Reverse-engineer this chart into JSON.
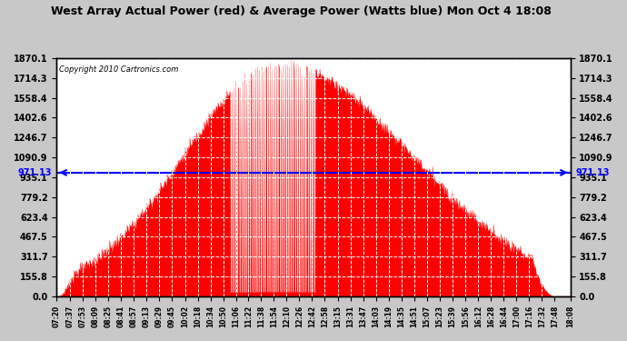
{
  "title": "West Array Actual Power (red) & Average Power (Watts blue) Mon Oct 4 18:08",
  "copyright": "Copyright 2010 Cartronics.com",
  "average_power": 971.13,
  "y_max": 1870.1,
  "y_min": 0.0,
  "ytick_values": [
    0.0,
    155.8,
    311.7,
    467.5,
    623.4,
    779.2,
    935.1,
    1090.9,
    1246.7,
    1402.6,
    1558.4,
    1714.3,
    1870.1
  ],
  "background_color": "#c8c8c8",
  "plot_bg_color": "#ffffff",
  "bar_color": "#ff0000",
  "avg_line_color": "#0000ff",
  "title_color": "#000000",
  "grid_color": "#ffffff",
  "x_times": [
    "07:20",
    "07:37",
    "07:53",
    "08:09",
    "08:25",
    "08:41",
    "08:57",
    "09:13",
    "09:29",
    "09:45",
    "10:02",
    "10:18",
    "10:34",
    "10:50",
    "11:06",
    "11:22",
    "11:38",
    "11:54",
    "12:10",
    "12:26",
    "12:42",
    "12:58",
    "13:15",
    "13:31",
    "13:47",
    "14:03",
    "14:19",
    "14:35",
    "14:51",
    "15:07",
    "15:23",
    "15:39",
    "15:56",
    "16:12",
    "16:28",
    "16:44",
    "17:00",
    "17:16",
    "17:32",
    "17:48",
    "18:08"
  ],
  "left_label_value": "971.13",
  "right_label_value": "971.13"
}
